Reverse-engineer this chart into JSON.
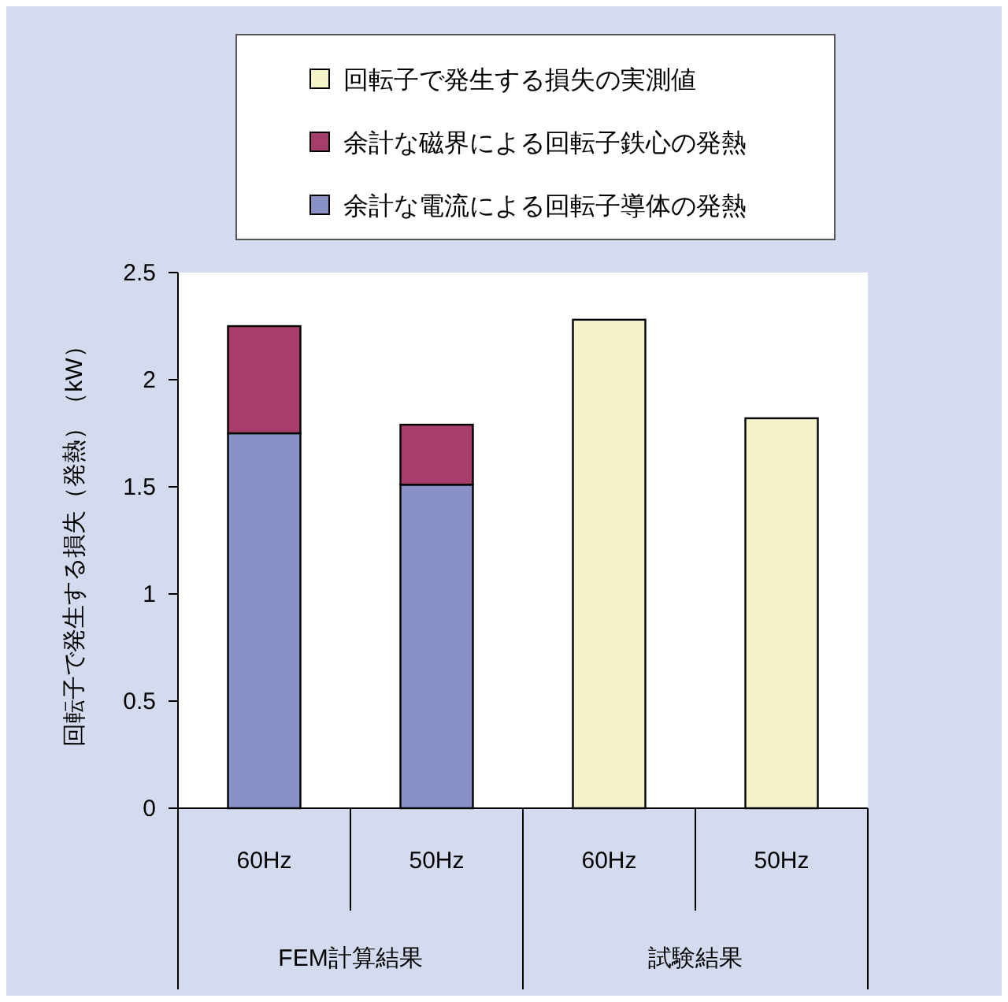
{
  "chart_data": {
    "type": "bar",
    "stacked": true,
    "ylabel": "回転子で発生する損失（発熱）（kW）",
    "categories": [
      "60Hz",
      "50Hz",
      "60Hz",
      "50Hz"
    ],
    "annotations": [
      "FEM計算結果",
      "試験結果"
    ],
    "series": [
      {
        "name": "余計な電流による回転子導体の発熱",
        "color": "#8891c6",
        "values": [
          1.75,
          1.51,
          null,
          null
        ]
      },
      {
        "name": "余計な磁界による回転子鉄心の発熱",
        "color": "#a63d6a",
        "values": [
          0.5,
          0.28,
          null,
          null
        ]
      },
      {
        "name": "回転子で発生する損失の実測値",
        "color": "#f5f3c8",
        "values": [
          null,
          null,
          2.28,
          1.82
        ]
      }
    ],
    "ylim": [
      0,
      2.5
    ],
    "yticks": [
      0,
      0.5,
      1,
      1.5,
      2,
      2.5
    ],
    "grid": false,
    "legend": "top"
  }
}
